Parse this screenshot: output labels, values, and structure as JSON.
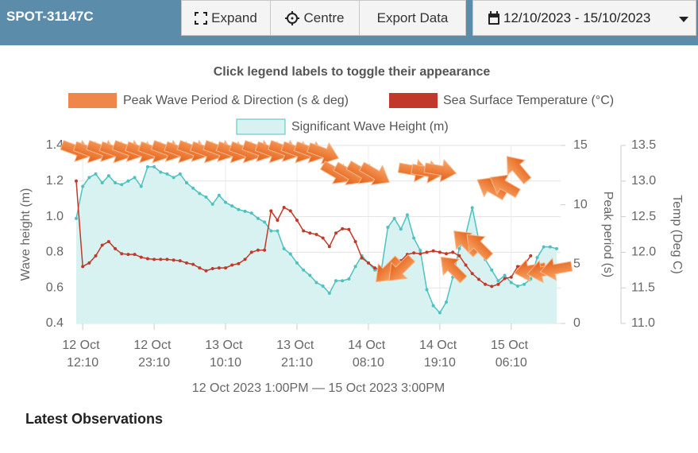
{
  "header": {
    "device": "SPOT-31147C",
    "buttons": [
      "Expand",
      "Centre",
      "Export Data"
    ],
    "date_range": "12/10/2023 - 15/10/2023"
  },
  "chart_data": {
    "type": "line",
    "note": "Click legend labels to toggle their appearance",
    "xlabel": "12 Oct 2023 1:00PM — 15 Oct 2023 3:00PM",
    "ylabel": "Wave height (m)",
    "y2label": "Peak period (s)",
    "y3label": "Temp (Deg C)",
    "grid": true,
    "x": [
      "2023-10-12T11:10",
      "2023-10-12T12:10",
      "2023-10-12T13:10",
      "2023-10-12T14:10",
      "2023-10-12T15:10",
      "2023-10-12T16:10",
      "2023-10-12T17:10",
      "2023-10-12T18:10",
      "2023-10-12T19:10",
      "2023-10-12T20:10",
      "2023-10-12T21:10",
      "2023-10-12T22:10",
      "2023-10-12T23:10",
      "2023-10-13T00:10",
      "2023-10-13T01:10",
      "2023-10-13T02:10",
      "2023-10-13T03:10",
      "2023-10-13T04:10",
      "2023-10-13T05:10",
      "2023-10-13T06:10",
      "2023-10-13T07:10",
      "2023-10-13T08:10",
      "2023-10-13T09:10",
      "2023-10-13T10:10",
      "2023-10-13T11:10",
      "2023-10-13T12:10",
      "2023-10-13T13:10",
      "2023-10-13T14:10",
      "2023-10-13T15:10",
      "2023-10-13T16:10",
      "2023-10-13T17:10",
      "2023-10-13T18:10",
      "2023-10-13T19:10",
      "2023-10-13T20:10",
      "2023-10-13T21:10",
      "2023-10-13T22:10",
      "2023-10-13T23:10",
      "2023-10-14T00:10",
      "2023-10-14T01:10",
      "2023-10-14T02:10",
      "2023-10-14T03:10",
      "2023-10-14T04:10",
      "2023-10-14T05:10",
      "2023-10-14T06:10",
      "2023-10-14T07:10",
      "2023-10-14T08:10",
      "2023-10-14T09:10",
      "2023-10-14T10:10",
      "2023-10-14T11:10",
      "2023-10-14T12:10",
      "2023-10-14T13:10",
      "2023-10-14T14:10",
      "2023-10-14T15:10",
      "2023-10-14T16:10",
      "2023-10-14T17:10",
      "2023-10-14T18:10",
      "2023-10-14T19:10",
      "2023-10-14T20:10",
      "2023-10-14T21:10",
      "2023-10-14T22:10",
      "2023-10-14T23:10",
      "2023-10-15T00:10",
      "2023-10-15T01:10",
      "2023-10-15T02:10",
      "2023-10-15T03:10",
      "2023-10-15T04:10",
      "2023-10-15T05:10",
      "2023-10-15T06:10",
      "2023-10-15T07:10",
      "2023-10-15T08:10",
      "2023-10-15T09:10",
      "2023-10-15T10:10",
      "2023-10-15T11:10",
      "2023-10-15T12:10",
      "2023-10-15T13:10"
    ],
    "xlim": [
      "2023-10-12T11:10",
      "2023-10-15T13:10"
    ],
    "xticks": [
      {
        "value": "2023-10-12T12:10",
        "label": "12 Oct 12:10"
      },
      {
        "value": "2023-10-12T23:10",
        "label": "12 Oct 23:10"
      },
      {
        "value": "2023-10-13T10:10",
        "label": "13 Oct 10:10"
      },
      {
        "value": "2023-10-13T21:10",
        "label": "13 Oct 21:10"
      },
      {
        "value": "2023-10-14T08:10",
        "label": "14 Oct 08:10"
      },
      {
        "value": "2023-10-14T19:10",
        "label": "14 Oct 19:10"
      },
      {
        "value": "2023-10-15T06:10",
        "label": "15 Oct 06:10"
      }
    ],
    "ylim": [
      0.4,
      1.4
    ],
    "yticks": [
      0.4,
      0.6,
      0.8,
      {
        "value": 1,
        "label": "1.0"
      },
      1.2,
      1.4
    ],
    "y2lim": [
      0,
      15
    ],
    "y2ticks": [
      0,
      5,
      10,
      15
    ],
    "y3lim": [
      11,
      13.5
    ],
    "y3ticks": [
      {
        "value": 11,
        "label": "11.0"
      },
      11.5,
      {
        "value": 12,
        "label": "12.0"
      },
      12.5,
      {
        "value": 13,
        "label": "13.0"
      },
      13.5
    ],
    "series": [
      {
        "name": "Peak Wave Period & Direction (s & deg)",
        "type": "arrow",
        "axis": "y2",
        "color": "#f0874a",
        "values": [
          14.6,
          null,
          14.5,
          null,
          14.6,
          null,
          14.5,
          null,
          14.6,
          null,
          14.5,
          null,
          14.5,
          null,
          14.6,
          null,
          14.5,
          null,
          14.6,
          null,
          14.5,
          null,
          14.6,
          null,
          14.5,
          null,
          14.5,
          null,
          14.6,
          null,
          14.5,
          null,
          14.6,
          null,
          14.5,
          null,
          14.5,
          null,
          14.4,
          null,
          12.7,
          null,
          12.6,
          null,
          12.7,
          null,
          12.6,
          null,
          4.5,
          null,
          4.6,
          null,
          12.9,
          null,
          12.8,
          null,
          12.9,
          null,
          4.6,
          null,
          6.8,
          null,
          6.5,
          null,
          11.4,
          null,
          11.6,
          null,
          13.0,
          null,
          4.5,
          null,
          4.4,
          null,
          4.6
        ],
        "directions": [
          290,
          null,
          290,
          null,
          290,
          null,
          290,
          null,
          290,
          null,
          290,
          null,
          290,
          null,
          290,
          null,
          290,
          null,
          290,
          null,
          290,
          null,
          290,
          null,
          290,
          null,
          290,
          null,
          290,
          null,
          290,
          null,
          290,
          null,
          290,
          null,
          290,
          null,
          290,
          null,
          300,
          null,
          300,
          null,
          300,
          null,
          300,
          null,
          45,
          null,
          45,
          null,
          280,
          null,
          280,
          null,
          280,
          null,
          135,
          null,
          135,
          null,
          135,
          null,
          120,
          null,
          120,
          null,
          140,
          null,
          80,
          null,
          80,
          null,
          80
        ]
      },
      {
        "name": "Sea Surface Temperature (°C)",
        "type": "line",
        "axis": "y3",
        "color": "#c0392b",
        "values": [
          13.0,
          11.8,
          11.85,
          11.95,
          12.1,
          12.15,
          12.05,
          11.98,
          11.97,
          11.97,
          11.93,
          11.91,
          11.9,
          11.9,
          11.9,
          11.89,
          11.88,
          11.85,
          11.83,
          11.78,
          11.74,
          11.77,
          11.78,
          11.78,
          11.82,
          11.84,
          11.9,
          12.0,
          12.03,
          12.03,
          12.58,
          12.45,
          12.63,
          12.58,
          12.45,
          12.3,
          12.27,
          12.25,
          12.2,
          12.08,
          12.27,
          12.33,
          12.32,
          12.15,
          11.92,
          11.85,
          11.78,
          11.75,
          11.82,
          11.85,
          11.88,
          11.97,
          11.99,
          11.98,
          12.0,
          12.02,
          12.0,
          11.98,
          12.0,
          11.95,
          11.82,
          11.7,
          11.62,
          11.55,
          11.52,
          11.55,
          11.63,
          11.65,
          11.8,
          11.82,
          11.95,
          null,
          null,
          null,
          null
        ]
      },
      {
        "name": "Significant Wave Height (m)",
        "type": "area",
        "axis": "y",
        "color": "#4fc1c1",
        "fill": "#d8f1f1",
        "values": [
          0.99,
          1.17,
          1.22,
          1.24,
          1.19,
          1.23,
          1.19,
          1.18,
          1.2,
          1.22,
          1.17,
          1.28,
          1.28,
          1.25,
          1.24,
          1.22,
          1.24,
          1.19,
          1.16,
          1.13,
          1.11,
          1.07,
          1.12,
          1.08,
          1.06,
          1.04,
          1.03,
          1.02,
          0.99,
          0.97,
          0.92,
          0.92,
          0.82,
          0.79,
          0.74,
          0.7,
          0.67,
          0.63,
          0.61,
          0.57,
          0.64,
          0.64,
          0.65,
          0.72,
          0.78,
          0.74,
          0.7,
          0.7,
          0.94,
          0.99,
          0.93,
          1.01,
          0.88,
          0.81,
          0.59,
          0.5,
          0.46,
          0.52,
          0.66,
          0.82,
          0.9,
          1.05,
          0.87,
          0.76,
          0.7,
          0.64,
          0.67,
          0.63,
          0.61,
          0.62,
          0.65,
          0.77,
          0.83,
          0.83,
          0.82
        ]
      }
    ]
  },
  "section_title": "Latest Observations"
}
